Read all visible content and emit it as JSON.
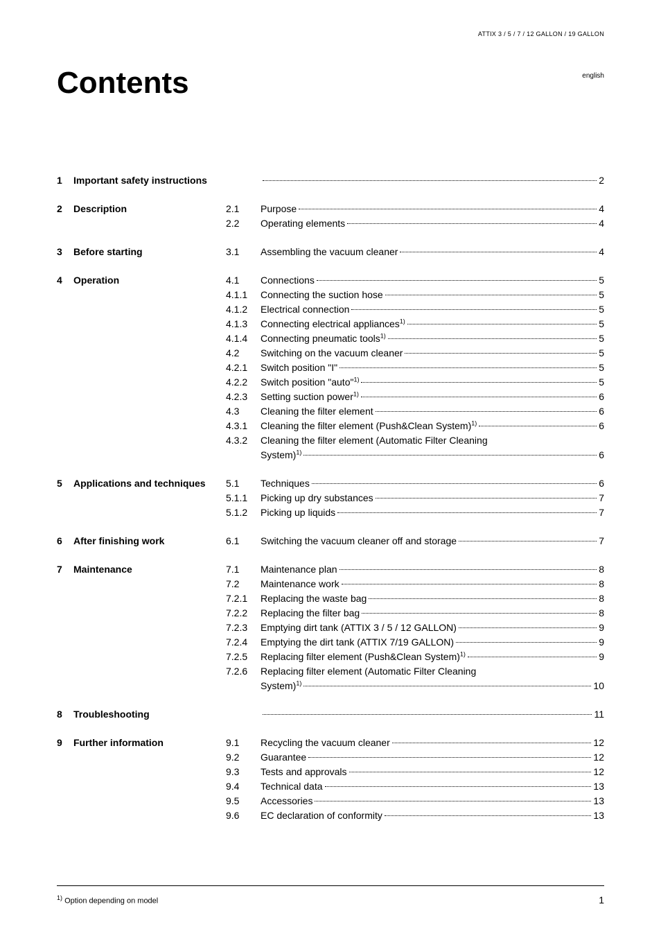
{
  "header_model": "ATTIX 3 / 5 / 7 / 12 GALLON / 19 GALLON",
  "language": "english",
  "title": "Contents",
  "footnote_marker": "1)",
  "footnote_text": "Option depending on model",
  "page_number": "1",
  "sections": [
    {
      "num": "1",
      "title": "Important safety instructions",
      "entries": [
        {
          "num": "",
          "title": "",
          "page": "2"
        }
      ]
    },
    {
      "num": "2",
      "title": "Description",
      "entries": [
        {
          "num": "2.1",
          "title": "Purpose",
          "page": "4"
        },
        {
          "num": "2.2",
          "title": "Operating elements",
          "page": "4"
        }
      ]
    },
    {
      "num": "3",
      "title": "Before starting",
      "entries": [
        {
          "num": "3.1",
          "title": "Assembling the vacuum cleaner",
          "page": "4"
        }
      ]
    },
    {
      "num": "4",
      "title": "Operation",
      "entries": [
        {
          "num": "4.1",
          "title": "Connections",
          "page": "5"
        },
        {
          "num": "4.1.1",
          "title": "Connecting the suction hose",
          "page": "5"
        },
        {
          "num": "4.1.2",
          "title": " Electrical connection",
          "page": "5"
        },
        {
          "num": "4.1.3",
          "title": "Connecting electrical appliances",
          "sup": "1)",
          "page": "5"
        },
        {
          "num": "4.1.4",
          "title": "Connecting pneumatic tools",
          "sup": "1)",
          "page": "5"
        },
        {
          "num": "4.2",
          "title": "Switching on the vacuum cleaner",
          "page": "5"
        },
        {
          "num": "4.2.1",
          "title": "Switch position \"I\"",
          "page": "5"
        },
        {
          "num": "4.2.2",
          "title": "Switch position \"auto\"",
          "sup": "1)",
          "page": "5"
        },
        {
          "num": "4.2.3",
          "title": "Setting suction power",
          "sup": "1)",
          "page": "6"
        },
        {
          "num": "4.3",
          "title": "Cleaning the filter element",
          "page": "6"
        },
        {
          "num": "4.3.1",
          "title": "Cleaning the filter element (Push&Clean System)",
          "sup": "1)",
          "page": "6"
        },
        {
          "num": "4.3.2",
          "title": "Cleaning the filter element (Automatic Filter Cleaning System)",
          "sup": "1)",
          "page": "6",
          "wrap": true
        }
      ]
    },
    {
      "num": "5",
      "title": "Applications and techniques",
      "entries": [
        {
          "num": "5.1",
          "title": "Techniques",
          "page": "6"
        },
        {
          "num": "5.1.1",
          "title": "Picking up dry substances",
          "page": "7"
        },
        {
          "num": "5.1.2",
          "title": "Picking up liquids",
          "page": "7"
        }
      ]
    },
    {
      "num": "6",
      "title": "After finishing work",
      "entries": [
        {
          "num": "6.1",
          "title": "Switching the vacuum cleaner off and storage",
          "page": "7"
        }
      ]
    },
    {
      "num": "7",
      "title": "Maintenance",
      "entries": [
        {
          "num": "7.1",
          "title": "Maintenance plan",
          "page": "8"
        },
        {
          "num": "7.2",
          "title": "Maintenance work",
          "page": "8"
        },
        {
          "num": "7.2.1",
          "title": "Replacing the waste bag",
          "page": "8"
        },
        {
          "num": "7.2.2",
          "title": "Replacing the filter bag",
          "page": "8"
        },
        {
          "num": "7.2.3",
          "title": "Emptying dirt tank (ATTIX 3 / 5 / 12 GALLON)",
          "page": "9"
        },
        {
          "num": "7.2.4",
          "title": "Emptying the dirt tank (ATTIX 7/19 GALLON)",
          "page": "9"
        },
        {
          "num": "7.2.5",
          "title": "Replacing filter element (Push&Clean System)",
          "sup": "1)",
          "page": "9"
        },
        {
          "num": "7.2.6",
          "title": "Replacing filter element  (Automatic Filter Cleaning System)",
          "sup": "1)",
          "page": "10",
          "wrap": true
        }
      ]
    },
    {
      "num": "8",
      "title": "Troubleshooting",
      "entries": [
        {
          "num": "",
          "title": "",
          "page": "11"
        }
      ]
    },
    {
      "num": "9",
      "title": "Further information",
      "entries": [
        {
          "num": "9.1",
          "title": "Recycling the vacuum cleaner",
          "page": "12"
        },
        {
          "num": "9.2",
          "title": "Guarantee",
          "page": "12"
        },
        {
          "num": "9.3",
          "title": "Tests and approvals",
          "page": "12"
        },
        {
          "num": "9.4",
          "title": "Technical data",
          "page": "13"
        },
        {
          "num": "9.5",
          "title": "Accessories",
          "page": "13"
        },
        {
          "num": "9.6",
          "title": "EC declaration of conformity",
          "page": "13"
        }
      ]
    }
  ]
}
